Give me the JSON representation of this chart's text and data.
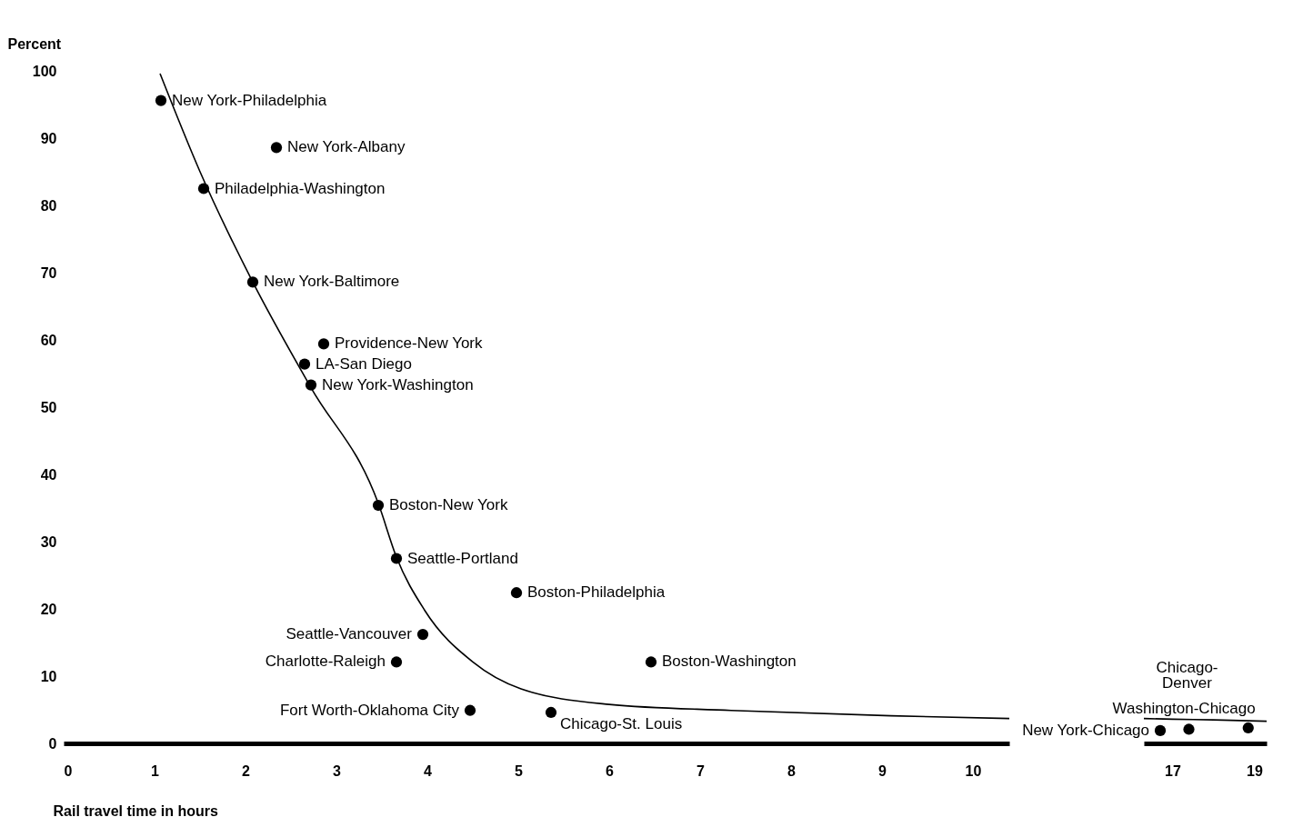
{
  "chart_data": [
    {
      "type": "scatter",
      "ylabel": "Percent",
      "xlabel": "Rail travel time in hours",
      "xlim": [
        0,
        10.4
      ],
      "xticks": [
        0,
        1,
        2,
        3,
        4,
        5,
        6,
        7,
        8,
        9,
        10
      ],
      "ylim": [
        0,
        100
      ],
      "yticks": [
        0,
        10,
        20,
        30,
        40,
        50,
        60,
        70,
        80,
        90,
        100
      ],
      "grid": false,
      "series": [
        {
          "type": "line",
          "marker": "none",
          "color": "#000000",
          "x": [
            1.06,
            1.5,
            2.08,
            2.72,
            3.46,
            3.66,
            3.97,
            4.5,
            5.03,
            6.0,
            7.34,
            9.1,
            10.4
          ],
          "values": [
            99.6,
            85,
            68.6,
            52.9,
            35.7,
            27.7,
            19.8,
            12.1,
            8.1,
            5.8,
            4.9,
            4.1,
            3.7
          ]
        },
        {
          "type": "scatter",
          "marker": "circle",
          "color": "#000000",
          "x": [
            1.07,
            2.34,
            1.54,
            2.08,
            2.86,
            2.65,
            2.72,
            3.46,
            3.66,
            4.98,
            3.95,
            3.66,
            6.46,
            4.47,
            5.36
          ],
          "values": [
            95.6,
            88.6,
            82.5,
            68.6,
            59.4,
            56.4,
            53.3,
            35.4,
            27.5,
            22.4,
            16.2,
            12.1,
            12.1,
            4.9,
            4.6
          ]
        }
      ],
      "annotations": [
        {
          "text": "New York-Philadelphia",
          "x": 1.07,
          "y": 95.6
        },
        {
          "text": "New York-Albany",
          "x": 2.34,
          "y": 88.6
        },
        {
          "text": "Philadelphia-Washington",
          "x": 1.54,
          "y": 82.5
        },
        {
          "text": "New York-Baltimore",
          "x": 2.08,
          "y": 68.6
        },
        {
          "text": "Providence-New York",
          "x": 2.86,
          "y": 59.4
        },
        {
          "text": "LA-San Diego",
          "x": 2.65,
          "y": 56.4
        },
        {
          "text": "New York-Washington",
          "x": 2.72,
          "y": 53.3
        },
        {
          "text": "Boston-New York",
          "x": 3.46,
          "y": 35.4
        },
        {
          "text": "Seattle-Portland",
          "x": 3.66,
          "y": 27.5
        },
        {
          "text": "Boston-Philadelphia",
          "x": 4.98,
          "y": 22.4
        },
        {
          "text": "Seattle-Vancouver",
          "x": 3.95,
          "y": 16.2
        },
        {
          "text": "Charlotte-Raleigh",
          "x": 3.66,
          "y": 12.1
        },
        {
          "text": "Boston-Washington",
          "x": 6.46,
          "y": 12.1
        },
        {
          "text": "Fort Worth-Oklahoma City",
          "x": 4.47,
          "y": 4.9
        },
        {
          "text": "Chicago-St. Louis",
          "x": 5.36,
          "y": 4.6
        }
      ]
    },
    {
      "type": "scatter",
      "xlim": [
        16.3,
        19.3
      ],
      "xticks": [
        17,
        19
      ],
      "ylim": [
        0,
        100
      ],
      "yticks": [
        0,
        10,
        20,
        30,
        40,
        50,
        60,
        70,
        80,
        90,
        100
      ],
      "tick_labels": "x",
      "grid": false,
      "series": [
        {
          "type": "line",
          "marker": "none",
          "color": "#000000",
          "x": [
            16.3,
            17,
            18,
            19.3
          ],
          "values": [
            3.7,
            3.6,
            3.5,
            3.3
          ]
        },
        {
          "type": "scatter",
          "marker": "circle",
          "color": "#000000",
          "x": [
            16.7,
            17.4,
            18.85
          ],
          "values": [
            1.9,
            2.1,
            2.3
          ]
        }
      ],
      "annotations": [
        {
          "text": "New York-Chicago",
          "x": 16.7,
          "y": 1.9
        },
        {
          "text": "Chicago-Denver",
          "x": 17.4,
          "y": 2.1
        },
        {
          "text": "Washington-Chicago",
          "x": 18.85,
          "y": 2.3
        }
      ]
    }
  ]
}
